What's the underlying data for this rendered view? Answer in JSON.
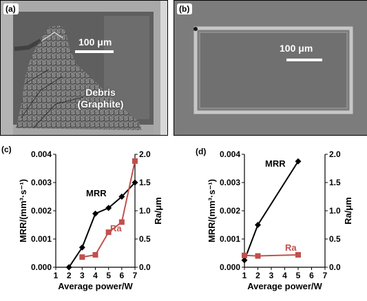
{
  "panels": {
    "a": {
      "tag": "(a)",
      "scale_label": "100 μm",
      "debris_line1": "Debris",
      "debris_line2": "(Graphite)"
    },
    "b": {
      "tag": "(b)",
      "scale_label": "100 μm"
    }
  },
  "colors": {
    "mrr": "#000000",
    "ra": "#c0504d",
    "axis": "#000000"
  },
  "chart_data": [
    {
      "panel": "c",
      "tag": "(c)",
      "type": "line",
      "xlabel": "Average power/W",
      "ylabel": "MRR/(mm³·s⁻¹)",
      "y2label": "Ra/μm",
      "xlim": [
        1,
        7
      ],
      "xticks": [
        "1",
        "2",
        "3",
        "4",
        "5",
        "6",
        "7"
      ],
      "ylim": [
        0,
        0.004
      ],
      "yticks": [
        "0.000",
        "0.001",
        "0.002",
        "0.003",
        "0.004"
      ],
      "y2lim": [
        0,
        2.0
      ],
      "y2ticks": [
        "0.0",
        "0.5",
        "1.0",
        "1.5",
        "2.0"
      ],
      "grid": false,
      "series": [
        {
          "name": "MRR",
          "axis": "left",
          "marker": "diamond",
          "x": [
            2,
            3,
            4,
            5,
            6,
            7
          ],
          "y": [
            0.0,
            0.0007,
            0.0019,
            0.0021,
            0.0025,
            0.003
          ]
        },
        {
          "name": "Ra",
          "axis": "right",
          "marker": "square",
          "x": [
            3,
            4,
            5,
            6,
            7
          ],
          "y": [
            0.18,
            0.22,
            0.62,
            0.8,
            1.88
          ]
        }
      ]
    },
    {
      "panel": "d",
      "tag": "(d)",
      "type": "line",
      "xlabel": "Average power/W",
      "ylabel": "MRR/(mm³·s⁻¹)",
      "y2label": "Ra/μm",
      "xlim": [
        1,
        7
      ],
      "xticks": [
        "1",
        "2",
        "3",
        "4",
        "5",
        "6",
        "7"
      ],
      "ylim": [
        0,
        0.004
      ],
      "yticks": [
        "0.000",
        "0.001",
        "0.002",
        "0.003",
        "0.004"
      ],
      "y2lim": [
        0,
        2.0
      ],
      "y2ticks": [
        "0.0",
        "0.5",
        "1.0",
        "1.5",
        "2.0"
      ],
      "grid": false,
      "series": [
        {
          "name": "MRR",
          "axis": "left",
          "marker": "diamond",
          "x": [
            1,
            2,
            5
          ],
          "y": [
            0.00025,
            0.0015,
            0.00375
          ]
        },
        {
          "name": "Ra",
          "axis": "right",
          "marker": "square",
          "x": [
            1,
            2,
            5
          ],
          "y": [
            0.21,
            0.2,
            0.22
          ]
        }
      ]
    }
  ]
}
